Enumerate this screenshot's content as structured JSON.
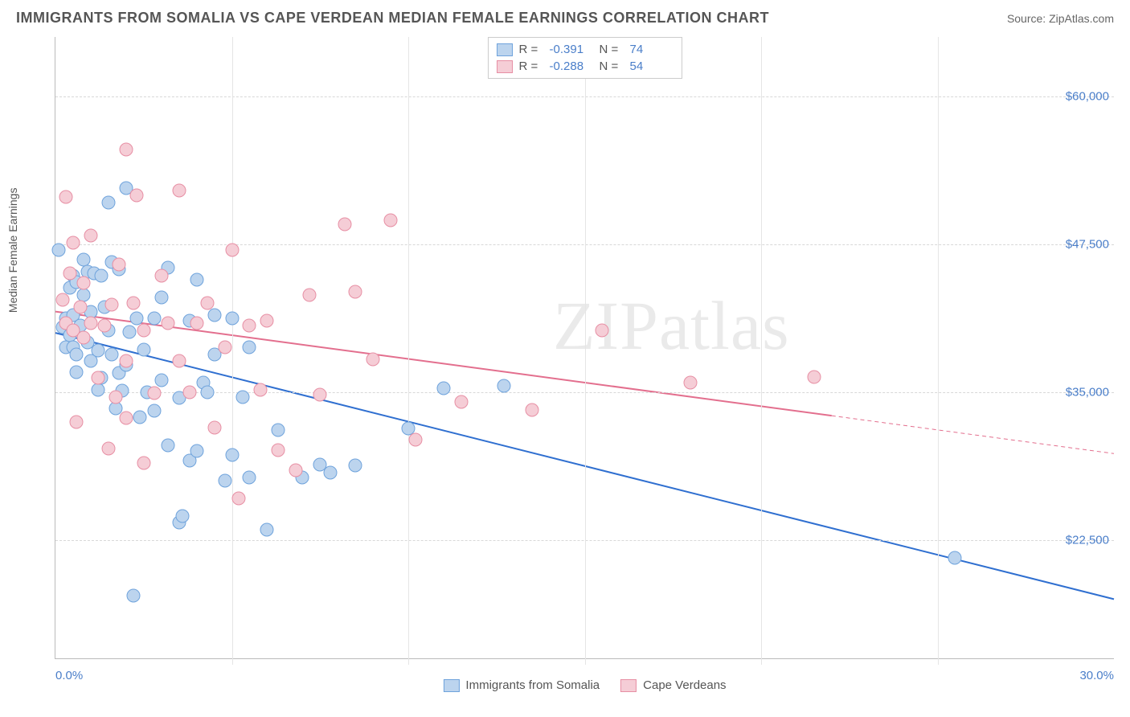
{
  "title": "IMMIGRANTS FROM SOMALIA VS CAPE VERDEAN MEDIAN FEMALE EARNINGS CORRELATION CHART",
  "source": "Source: ZipAtlas.com",
  "watermark": "ZIPatlas",
  "chart": {
    "type": "scatter",
    "yaxis_label": "Median Female Earnings",
    "background_color": "#ffffff",
    "grid_color": "#d8d8d8",
    "text_color": "#555555",
    "axis_label_color": "#4a7ec9",
    "title_fontsize": 18,
    "label_fontsize": 14,
    "tick_fontsize": 15,
    "xlim": [
      0,
      30
    ],
    "ylim": [
      12500,
      65000
    ],
    "x_ticks": [
      0,
      30
    ],
    "x_tick_labels": [
      "0.0%",
      "30.0%"
    ],
    "x_minor_ticks": [
      5,
      10,
      15,
      20,
      25
    ],
    "y_ticks": [
      22500,
      35000,
      47500,
      60000
    ],
    "y_tick_labels": [
      "$22,500",
      "$35,000",
      "$47,500",
      "$60,000"
    ],
    "point_radius": 8.5,
    "point_border_width": 1,
    "line_width": 2,
    "series": [
      {
        "name": "Immigrants from Somalia",
        "fill": "#bcd4ee",
        "stroke": "#6fa3dc",
        "line_color": "#2f6fd0",
        "R": "-0.391",
        "N": "74",
        "regression": {
          "x1": 0,
          "y1": 40000,
          "x2": 30,
          "y2": 17500,
          "dash_from_x": null
        },
        "points": [
          [
            0.1,
            47000
          ],
          [
            0.2,
            40500
          ],
          [
            0.3,
            41200
          ],
          [
            0.3,
            38800
          ],
          [
            0.4,
            39800
          ],
          [
            0.4,
            43800
          ],
          [
            0.5,
            41500
          ],
          [
            0.5,
            44800
          ],
          [
            0.5,
            38800
          ],
          [
            0.6,
            38200
          ],
          [
            0.6,
            44300
          ],
          [
            0.6,
            36700
          ],
          [
            0.7,
            40600
          ],
          [
            0.8,
            46200
          ],
          [
            0.8,
            43200
          ],
          [
            0.9,
            39200
          ],
          [
            0.9,
            45200
          ],
          [
            1.0,
            41800
          ],
          [
            1.0,
            37600
          ],
          [
            1.1,
            45000
          ],
          [
            1.2,
            38500
          ],
          [
            1.2,
            35200
          ],
          [
            1.3,
            44800
          ],
          [
            1.3,
            36200
          ],
          [
            1.4,
            42200
          ],
          [
            1.5,
            51000
          ],
          [
            1.5,
            40200
          ],
          [
            1.6,
            38200
          ],
          [
            1.6,
            46000
          ],
          [
            1.7,
            33600
          ],
          [
            1.8,
            36600
          ],
          [
            1.8,
            45400
          ],
          [
            1.9,
            35100
          ],
          [
            2.0,
            37300
          ],
          [
            2.0,
            52200
          ],
          [
            2.1,
            40100
          ],
          [
            2.2,
            17800
          ],
          [
            2.3,
            41200
          ],
          [
            2.4,
            32900
          ],
          [
            2.5,
            38600
          ],
          [
            2.6,
            35000
          ],
          [
            2.8,
            33400
          ],
          [
            2.8,
            41200
          ],
          [
            3.0,
            43000
          ],
          [
            3.0,
            36000
          ],
          [
            3.2,
            30500
          ],
          [
            3.2,
            45500
          ],
          [
            3.5,
            34500
          ],
          [
            3.5,
            24000
          ],
          [
            3.8,
            29200
          ],
          [
            3.8,
            41000
          ],
          [
            4.0,
            30000
          ],
          [
            4.0,
            44500
          ],
          [
            4.2,
            35800
          ],
          [
            4.3,
            35000
          ],
          [
            4.5,
            38200
          ],
          [
            4.5,
            41500
          ],
          [
            4.8,
            27500
          ],
          [
            5.0,
            29700
          ],
          [
            5.0,
            41200
          ],
          [
            5.3,
            34600
          ],
          [
            5.5,
            27800
          ],
          [
            5.5,
            38800
          ],
          [
            6.0,
            23400
          ],
          [
            6.3,
            31800
          ],
          [
            7.0,
            27800
          ],
          [
            7.5,
            28900
          ],
          [
            7.8,
            28200
          ],
          [
            8.5,
            28800
          ],
          [
            10.0,
            31900
          ],
          [
            11.0,
            35300
          ],
          [
            12.7,
            35500
          ],
          [
            25.5,
            21000
          ],
          [
            3.6,
            24500
          ]
        ]
      },
      {
        "name": "Cape Verdeans",
        "fill": "#f5cdd6",
        "stroke": "#e78fa4",
        "line_color": "#e36f8e",
        "R": "-0.288",
        "N": "54",
        "regression": {
          "x1": 0,
          "y1": 41800,
          "x2": 30,
          "y2": 29800,
          "dash_from_x": 22
        },
        "points": [
          [
            0.2,
            42800
          ],
          [
            0.3,
            51500
          ],
          [
            0.3,
            40800
          ],
          [
            0.4,
            45000
          ],
          [
            0.5,
            40200
          ],
          [
            0.5,
            47600
          ],
          [
            0.6,
            32500
          ],
          [
            0.7,
            42200
          ],
          [
            0.8,
            39600
          ],
          [
            0.8,
            44200
          ],
          [
            1.0,
            40800
          ],
          [
            1.0,
            48200
          ],
          [
            1.2,
            36200
          ],
          [
            1.4,
            40600
          ],
          [
            1.5,
            30200
          ],
          [
            1.6,
            42400
          ],
          [
            1.7,
            34600
          ],
          [
            1.8,
            45800
          ],
          [
            2.0,
            55500
          ],
          [
            2.0,
            37600
          ],
          [
            2.0,
            32800
          ],
          [
            2.2,
            42500
          ],
          [
            2.3,
            51600
          ],
          [
            2.5,
            40200
          ],
          [
            2.5,
            29000
          ],
          [
            2.8,
            34900
          ],
          [
            3.0,
            44800
          ],
          [
            3.2,
            40800
          ],
          [
            3.5,
            52000
          ],
          [
            3.5,
            37600
          ],
          [
            3.8,
            35000
          ],
          [
            4.0,
            40800
          ],
          [
            4.3,
            42500
          ],
          [
            4.5,
            32000
          ],
          [
            4.8,
            38800
          ],
          [
            5.0,
            47000
          ],
          [
            5.2,
            26000
          ],
          [
            5.5,
            40600
          ],
          [
            5.8,
            35200
          ],
          [
            6.0,
            41000
          ],
          [
            6.3,
            30100
          ],
          [
            6.8,
            28400
          ],
          [
            7.2,
            43200
          ],
          [
            7.5,
            34800
          ],
          [
            8.2,
            49200
          ],
          [
            8.5,
            43500
          ],
          [
            9.0,
            37800
          ],
          [
            9.5,
            49500
          ],
          [
            10.2,
            31000
          ],
          [
            11.5,
            34200
          ],
          [
            13.5,
            33500
          ],
          [
            15.5,
            40200
          ],
          [
            18.0,
            35800
          ],
          [
            21.5,
            36300
          ]
        ]
      }
    ]
  }
}
